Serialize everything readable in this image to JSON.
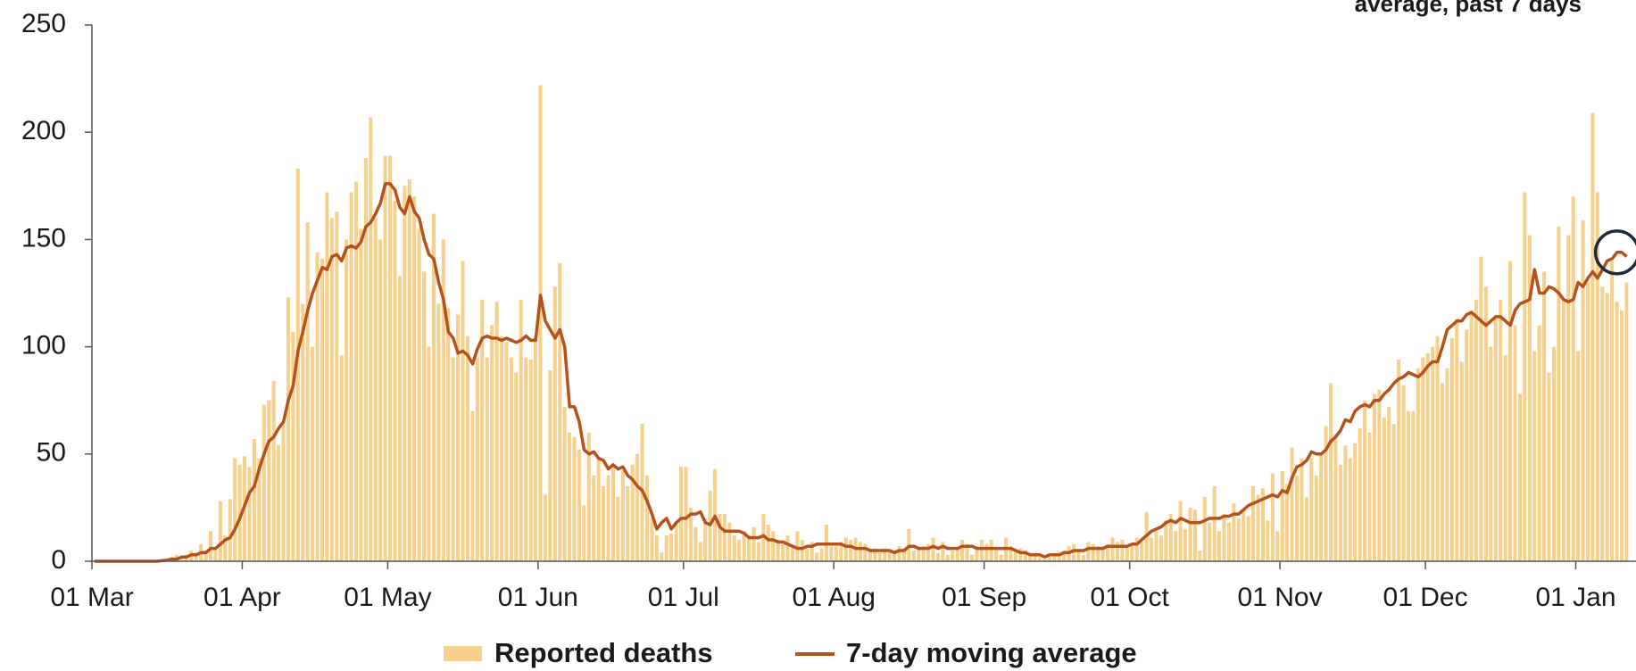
{
  "chart_data": {
    "type": "bar-line",
    "annotation": "average, past 7 days",
    "ylim": [
      0,
      250
    ],
    "yticks": [
      0,
      50,
      100,
      150,
      200,
      250
    ],
    "categories": [
      "01 Mar",
      null,
      null,
      null,
      null,
      null,
      null,
      null,
      null,
      null,
      null,
      null,
      null,
      null,
      null,
      null,
      null,
      null,
      null,
      null,
      null,
      null,
      null,
      null,
      null,
      null,
      null,
      null,
      null,
      null,
      null,
      "01 Apr",
      null,
      null,
      null,
      null,
      null,
      null,
      null,
      null,
      null,
      null,
      null,
      null,
      null,
      null,
      null,
      null,
      null,
      null,
      null,
      null,
      null,
      null,
      null,
      null,
      null,
      null,
      null,
      null,
      null,
      "01 May",
      null,
      null,
      null,
      null,
      null,
      null,
      null,
      null,
      null,
      null,
      null,
      null,
      null,
      null,
      null,
      null,
      null,
      null,
      null,
      null,
      null,
      null,
      null,
      null,
      null,
      null,
      null,
      null,
      null,
      null,
      "01 Jun",
      null,
      null,
      null,
      null,
      null,
      null,
      null,
      null,
      null,
      null,
      null,
      null,
      null,
      null,
      null,
      null,
      null,
      null,
      null,
      null,
      null,
      null,
      null,
      null,
      null,
      null,
      null,
      null,
      null,
      "01 Jul",
      null,
      null,
      null,
      null,
      null,
      null,
      null,
      null,
      null,
      null,
      null,
      null,
      null,
      null,
      null,
      null,
      null,
      null,
      null,
      null,
      null,
      null,
      null,
      null,
      null,
      null,
      null,
      null,
      null,
      null,
      "01 Aug",
      null,
      null,
      null,
      null,
      null,
      null,
      null,
      null,
      null,
      null,
      null,
      null,
      null,
      null,
      null,
      null,
      null,
      null,
      null,
      null,
      null,
      null,
      null,
      null,
      null,
      null,
      null,
      null,
      null,
      null,
      "01 Sep",
      null,
      null,
      null,
      null,
      null,
      null,
      null,
      null,
      null,
      null,
      null,
      null,
      null,
      null,
      null,
      null,
      null,
      null,
      null,
      null,
      null,
      null,
      null,
      null,
      null,
      null,
      null,
      null,
      null,
      "01 Oct",
      null,
      null,
      null,
      null,
      null,
      null,
      null,
      null,
      null,
      null,
      null,
      null,
      null,
      null,
      null,
      null,
      null,
      null,
      null,
      null,
      null,
      null,
      null,
      null,
      null,
      null,
      null,
      null,
      null,
      null,
      "01 Nov",
      null,
      null,
      null,
      null,
      null,
      null,
      null,
      null,
      null,
      null,
      null,
      null,
      null,
      null,
      null,
      null,
      null,
      null,
      null,
      null,
      null,
      null,
      null,
      null,
      null,
      null,
      null,
      null,
      null,
      "01 Dec",
      null,
      null,
      null,
      null,
      null,
      null,
      null,
      null,
      null,
      null,
      null,
      null,
      null,
      null,
      null,
      null,
      null,
      null,
      null,
      null,
      null,
      null,
      null,
      null,
      null,
      null,
      null,
      null,
      null,
      null,
      "01 Jan",
      null,
      null,
      null,
      null,
      null,
      null,
      null,
      null,
      null,
      null
    ],
    "series": [
      {
        "name": "Reported deaths",
        "type": "bar",
        "color": "#f6d08c",
        "values": [
          0,
          0,
          0,
          0,
          0,
          0,
          0,
          0,
          0,
          0,
          0,
          0,
          0,
          0,
          1,
          0,
          2,
          3,
          2,
          3,
          5,
          4,
          8,
          5,
          14,
          6,
          28,
          12,
          29,
          48,
          45,
          49,
          44,
          57,
          48,
          73,
          75,
          84,
          54,
          65,
          123,
          107,
          183,
          120,
          158,
          100,
          144,
          141,
          172,
          160,
          163,
          96,
          150,
          172,
          177,
          155,
          188,
          207,
          160,
          150,
          189,
          189,
          168,
          133,
          175,
          178,
          170,
          155,
          135,
          100,
          162,
          120,
          150,
          118,
          95,
          115,
          140,
          105,
          70,
          95,
          122,
          95,
          110,
          121,
          105,
          102,
          95,
          88,
          122,
          95,
          94,
          105,
          222,
          31,
          89,
          128,
          139,
          72,
          60,
          58,
          52,
          26,
          60,
          40,
          48,
          35,
          40,
          45,
          30,
          42,
          35,
          45,
          50,
          64,
          40,
          20,
          12,
          4,
          12,
          13,
          18,
          44,
          44,
          25,
          16,
          9,
          20,
          33,
          43,
          22,
          22,
          18,
          12,
          10,
          14,
          12,
          16,
          9,
          22,
          17,
          14,
          10,
          8,
          12,
          7,
          14,
          10,
          6,
          9,
          4,
          6,
          17,
          7,
          7,
          9,
          11,
          10,
          11,
          9,
          8,
          6,
          6,
          4,
          6,
          5,
          5,
          7,
          6,
          15,
          5,
          6,
          7,
          8,
          11,
          4,
          9,
          3,
          5,
          6,
          10,
          8,
          3,
          7,
          10,
          8,
          10,
          6,
          3,
          11,
          7,
          5,
          6,
          5,
          4,
          3,
          2,
          1,
          2,
          3,
          4,
          5,
          7,
          8,
          5,
          3,
          9,
          8,
          7,
          6,
          8,
          11,
          9,
          10,
          7,
          7,
          11,
          9,
          23,
          11,
          14,
          12,
          19,
          22,
          14,
          28,
          15,
          25,
          24,
          5,
          30,
          18,
          35,
          14,
          22,
          18,
          27,
          20,
          24,
          21,
          35,
          31,
          34,
          19,
          41,
          14,
          42,
          36,
          53,
          40,
          48,
          30,
          48,
          40,
          50,
          63,
          83,
          59,
          45,
          54,
          48,
          55,
          62,
          75,
          60,
          78,
          80,
          67,
          72,
          64,
          94,
          82,
          70,
          70,
          90,
          95,
          97,
          100,
          105,
          83,
          90,
          104,
          113,
          93,
          108,
          117,
          122,
          142,
          128,
          100,
          115,
          122,
          96,
          140,
          110,
          78,
          172,
          152,
          98,
          110,
          135,
          88,
          100,
          156,
          122,
          152,
          170,
          98,
          159,
          130,
          209,
          172,
          128,
          125,
          140,
          121,
          117,
          130
        ]
      },
      {
        "name": "7-day moving average",
        "type": "line",
        "color": "#b5521b",
        "values": [
          0,
          0,
          0,
          0,
          0,
          0,
          0,
          0,
          0,
          0,
          0,
          0,
          0,
          0,
          0.3,
          0.5,
          1,
          1,
          2,
          2,
          3,
          3,
          4,
          4,
          6,
          6,
          8,
          10,
          11,
          15,
          20,
          26,
          32,
          35,
          43,
          50,
          56,
          58,
          62,
          65,
          75,
          82,
          98,
          107,
          117,
          125,
          131,
          137,
          136,
          142,
          143,
          140,
          146,
          147,
          146,
          149,
          156,
          158,
          162,
          167,
          176,
          176,
          173,
          165,
          162,
          170,
          163,
          160,
          150,
          143,
          141,
          130,
          122,
          107,
          104,
          97,
          98,
          96,
          92,
          99,
          104,
          105,
          104,
          104,
          103,
          104,
          103,
          102,
          103,
          105,
          103,
          103,
          124,
          112,
          108,
          104,
          108,
          100,
          72,
          72,
          65,
          52,
          50,
          51,
          48,
          47,
          43,
          45,
          43,
          44,
          40,
          38,
          35,
          33,
          28,
          22,
          15,
          18,
          20,
          15,
          18,
          20,
          20,
          22,
          22,
          23,
          18,
          17,
          21,
          16,
          14,
          14,
          14,
          14,
          13,
          11,
          11,
          11,
          12,
          10,
          10,
          9,
          9,
          8,
          7,
          6,
          6,
          7,
          7,
          8,
          8,
          8,
          8,
          8,
          8,
          7,
          7,
          6,
          6,
          6,
          5,
          5,
          5,
          5,
          5,
          4,
          5,
          5,
          7,
          7,
          6,
          6,
          6,
          7,
          6,
          7,
          6,
          6,
          6,
          7,
          7,
          7,
          6,
          6,
          6,
          6,
          6,
          6,
          6,
          6,
          5,
          4,
          4,
          3,
          3,
          3,
          2,
          3,
          3,
          3,
          4,
          4,
          5,
          5,
          5,
          6,
          6,
          6,
          6,
          7,
          7,
          7,
          7,
          7,
          8,
          8,
          10,
          12,
          14,
          15,
          16,
          18,
          19,
          18,
          20,
          19,
          18,
          18,
          18,
          19,
          20,
          20,
          20,
          21,
          21,
          22,
          22,
          24,
          26,
          27,
          28,
          29,
          30,
          31,
          30,
          33,
          32,
          39,
          44,
          45,
          47,
          51,
          50,
          50,
          52,
          56,
          58,
          61,
          66,
          65,
          70,
          72,
          73,
          72,
          75,
          75,
          78,
          80,
          83,
          85,
          86,
          88,
          87,
          86,
          88,
          91,
          93,
          93,
          100,
          108,
          110,
          112,
          112,
          115,
          116,
          114,
          112,
          110,
          112,
          114,
          114,
          112,
          110,
          117,
          120,
          121,
          122,
          136,
          125,
          125,
          128,
          127,
          125,
          122,
          121,
          122,
          130,
          128,
          132,
          135,
          132,
          136,
          140,
          141,
          144,
          144,
          142
        ]
      }
    ]
  }
}
